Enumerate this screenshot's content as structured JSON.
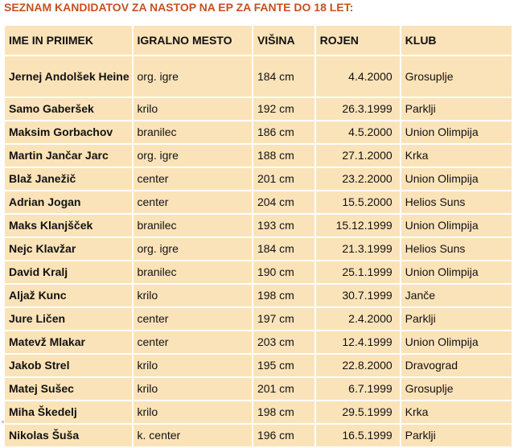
{
  "title": "SEZNAM KANDIDATOV ZA NASTOP NA EP ZA FANTE DO 18 LET:",
  "table": {
    "headers": [
      "IME IN PRIIMEK",
      "IGRALNO MESTO",
      "VIŠINA",
      "ROJEN",
      "KLUB"
    ],
    "rows": [
      [
        "Jernej Andolšek Heine",
        "org. igre",
        "184 cm",
        "4.4.2000",
        "Grosuplje"
      ],
      [
        "Samo Gaberšek",
        "krilo",
        "192 cm",
        "26.3.1999",
        "Parklji"
      ],
      [
        "Maksim Gorbachov",
        "branilec",
        "186 cm",
        "4.5.2000",
        "Union Olimpija"
      ],
      [
        "Martin Jančar Jarc",
        "org. igre",
        "188 cm",
        "27.1.2000",
        "Krka"
      ],
      [
        "Blaž Janežič",
        "center",
        "201 cm",
        "23.2.2000",
        "Union Olimpija"
      ],
      [
        "Adrian Jogan",
        "center",
        "204 cm",
        "15.5.2000",
        "Helios Suns"
      ],
      [
        "Maks Klanjšček",
        "branilec",
        "193 cm",
        "15.12.1999",
        "Union Olimpija"
      ],
      [
        "Nejc Klavžar",
        "org. igre",
        "184 cm",
        "21.3.1999",
        "Helios Suns"
      ],
      [
        "David Kralj",
        "branilec",
        "190 cm",
        "25.1.1999",
        "Union Olimpija"
      ],
      [
        "Aljaž Kunc",
        "krilo",
        "198 cm",
        "30.7.1999",
        "Janče"
      ],
      [
        "Jure Ličen",
        "center",
        "197 cm",
        "2.4.2000",
        "Parklji"
      ],
      [
        "Matevž Mlakar",
        "center",
        "203 cm",
        "12.4.1999",
        "Union Olimpija"
      ],
      [
        "Jakob Strel",
        "krilo",
        "195 cm",
        "22.8.2000",
        "Dravograd"
      ],
      [
        "Matej Sušec",
        "krilo",
        "201 cm",
        "6.7.1999",
        "Grosuplje"
      ],
      [
        "Miha Škedelj",
        "krilo",
        "198 cm",
        "29.5.1999",
        "Krka"
      ],
      [
        "Nikolas Šuša",
        "k. center",
        "196 cm",
        "16.5.1999",
        "Parklji"
      ]
    ]
  }
}
